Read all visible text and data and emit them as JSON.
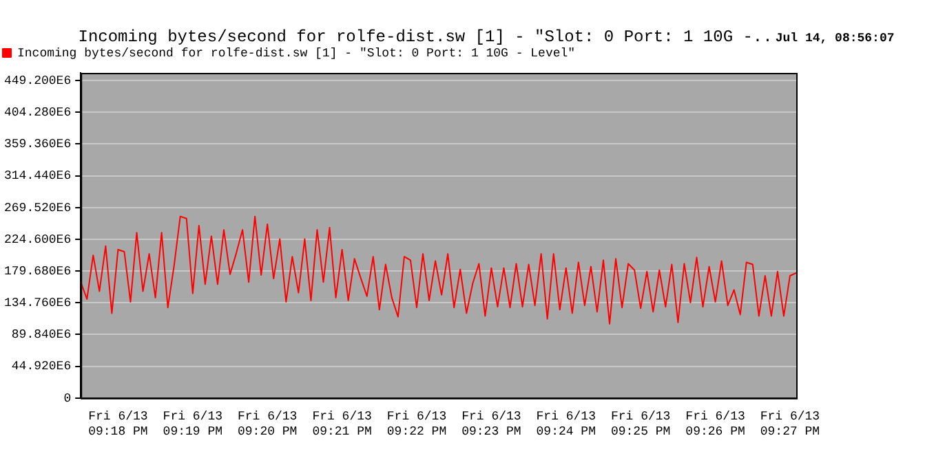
{
  "chart_data": {
    "type": "line",
    "title": "Incoming bytes/second for rolfe-dist.sw [1] - \"Slot: 0 Port: 1 10G -..",
    "subtitle": "Jul 14, 08:56:07",
    "categories": [
      null,
      null,
      null,
      null,
      null,
      null,
      "Fri 6/13\n09:18 PM",
      null,
      null,
      null,
      null,
      null,
      null,
      null,
      null,
      null,
      null,
      null,
      "Fri 6/13\n09:19 PM",
      null,
      null,
      null,
      null,
      null,
      null,
      null,
      null,
      null,
      null,
      null,
      "Fri 6/13\n09:20 PM",
      null,
      null,
      null,
      null,
      null,
      null,
      null,
      null,
      null,
      null,
      null,
      "Fri 6/13\n09:21 PM",
      null,
      null,
      null,
      null,
      null,
      null,
      null,
      null,
      null,
      null,
      null,
      "Fri 6/13\n09:22 PM",
      null,
      null,
      null,
      null,
      null,
      null,
      null,
      null,
      null,
      null,
      null,
      "Fri 6/13\n09:23 PM",
      null,
      null,
      null,
      null,
      null,
      null,
      null,
      null,
      null,
      null,
      null,
      "Fri 6/13\n09:24 PM",
      null,
      null,
      null,
      null,
      null,
      null,
      null,
      null,
      null,
      null,
      null,
      "Fri 6/13\n09:25 PM",
      null,
      null,
      null,
      null,
      null,
      null,
      null,
      null,
      null,
      null,
      null,
      "Fri 6/13\n09:26 PM",
      null,
      null,
      null,
      null,
      null,
      null,
      null,
      null,
      null,
      null,
      null,
      "Fri 6/13\n09:27 PM",
      null
    ],
    "series": [
      {
        "name": "Incoming bytes/second for rolfe-dist.sw [1] - \"Slot: 0 Port: 1 10G - Level\"",
        "color": "#ff0000",
        "values": [
          164000000,
          140000000,
          202000000,
          151000000,
          215000000,
          120000000,
          210000000,
          207000000,
          136000000,
          234000000,
          151000000,
          204000000,
          142000000,
          234000000,
          128000000,
          187000000,
          257000000,
          254000000,
          148000000,
          244000000,
          161000000,
          229000000,
          161000000,
          238000000,
          175000000,
          205000000,
          238000000,
          164000000,
          257000000,
          174000000,
          246000000,
          169000000,
          225000000,
          136000000,
          200000000,
          149000000,
          225000000,
          138000000,
          238000000,
          164000000,
          241000000,
          142000000,
          210000000,
          138000000,
          197000000,
          170000000,
          144000000,
          200000000,
          125000000,
          189000000,
          142000000,
          115000000,
          200000000,
          195000000,
          128000000,
          204000000,
          138000000,
          194000000,
          146000000,
          204000000,
          128000000,
          182000000,
          120000000,
          162000000,
          190000000,
          116000000,
          184000000,
          129000000,
          184000000,
          128000000,
          190000000,
          129000000,
          189000000,
          131000000,
          204000000,
          112000000,
          204000000,
          125000000,
          184000000,
          120000000,
          192000000,
          131000000,
          186000000,
          122000000,
          195000000,
          105000000,
          197000000,
          128000000,
          190000000,
          181000000,
          127000000,
          179000000,
          122000000,
          181000000,
          129000000,
          189000000,
          107000000,
          190000000,
          135000000,
          199000000,
          129000000,
          186000000,
          136000000,
          194000000,
          131000000,
          153000000,
          118000000,
          192000000,
          189000000,
          116000000,
          173000000,
          116000000,
          179000000,
          116000000,
          173000000,
          177000000
        ]
      }
    ],
    "ylim": [
      0,
      460000000
    ],
    "yticks": [
      0,
      {
        "value": 44920000,
        "label": "44.920E6"
      },
      {
        "value": 89840000,
        "label": "89.840E6"
      },
      {
        "value": 134760000,
        "label": "134.760E6"
      },
      {
        "value": 179680000,
        "label": "179.680E6"
      },
      {
        "value": 224600000,
        "label": "224.600E6"
      },
      {
        "value": 269520000,
        "label": "269.520E6"
      },
      {
        "value": 314440000,
        "label": "314.440E6"
      },
      {
        "value": 359360000,
        "label": "359.360E6"
      },
      {
        "value": 404280000,
        "label": "404.280E6"
      },
      {
        "value": 449200000,
        "label": "449.200E6"
      }
    ],
    "grid": "y",
    "legend": "top left",
    "marker": "none",
    "line_style": "solid"
  }
}
